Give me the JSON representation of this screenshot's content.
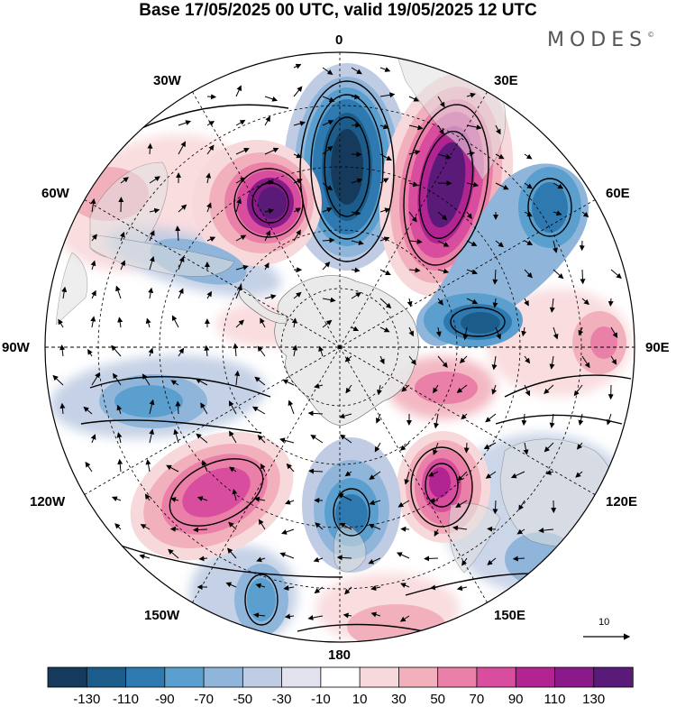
{
  "title": "Base 17/05/2025 00 UTC, valid 19/05/2025 12 UTC",
  "brand": "MODES",
  "brand_mark": "©",
  "longitude_labels": {
    "lon_0": "0",
    "lon_30e": "30E",
    "lon_60e": "60E",
    "lon_90e": "90E",
    "lon_120e": "120E",
    "lon_150e": "150E",
    "lon_180": "180",
    "lon_150w": "150W",
    "lon_120w": "120W",
    "lon_90w": "90W",
    "lon_60w": "60W",
    "lon_30w": "30W"
  },
  "vector_scale_label": "10",
  "colorbar": {
    "labels": [
      "-130",
      "-110",
      "-90",
      "-70",
      "-50",
      "-30",
      "-10",
      "10",
      "30",
      "50",
      "70",
      "90",
      "110",
      "130"
    ],
    "colors": [
      "#153a5c",
      "#1c5c8a",
      "#2e7ab0",
      "#5a9fcd",
      "#8fb6da",
      "#bfcce3",
      "#e2e3ef",
      "#ffffff",
      "#f8d9db",
      "#f2b0bc",
      "#ea7fa8",
      "#d84d9e",
      "#b32493",
      "#8a1a8a",
      "#5a1a78"
    ]
  },
  "projection": "south-polar-stereographic",
  "anomalies": [
    {
      "lon": 0,
      "sign": "negative",
      "peak": "-130"
    },
    {
      "lon": 30,
      "sign": "positive",
      "peak": "130"
    },
    {
      "lon": 330,
      "sign": "positive",
      "peak": "130"
    },
    {
      "lon": 60,
      "sign": "negative",
      "peak": "-90"
    },
    {
      "lon": 90,
      "sign": "positive",
      "peak": "50"
    },
    {
      "lon": 140,
      "sign": "positive",
      "peak": "110"
    },
    {
      "lon": 180,
      "sign": "negative",
      "peak": "-90"
    },
    {
      "lon": 240,
      "sign": "positive",
      "peak": "90"
    },
    {
      "lon": 270,
      "sign": "negative",
      "peak": "-70"
    },
    {
      "lon": 300,
      "sign": "negative",
      "peak": "-50"
    }
  ]
}
